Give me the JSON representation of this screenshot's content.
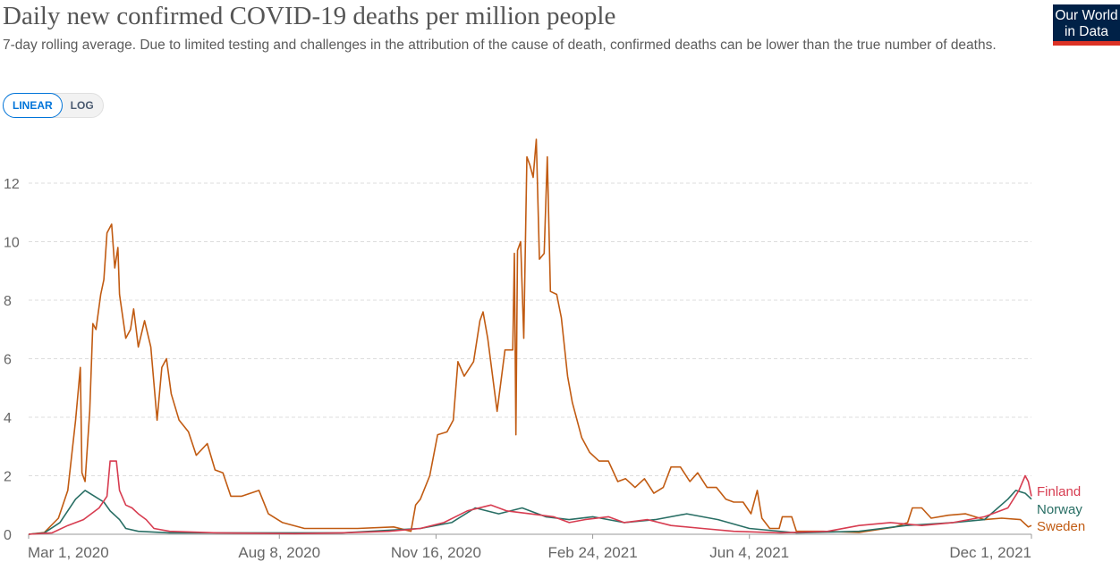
{
  "title": "Daily new confirmed COVID-19 deaths per million people",
  "subtitle": "7-day rolling average. Due to limited testing and challenges in the attribution of the cause of death, confirmed deaths can be lower than the true number of deaths.",
  "logo": {
    "line1": "Our World",
    "line2": "in Data"
  },
  "toggle": {
    "linear": "LINEAR",
    "log": "LOG"
  },
  "chart_data": {
    "type": "line",
    "title": "Daily new confirmed COVID-19 deaths per million people",
    "xlabel": "",
    "ylabel": "",
    "x_unit": "days since Mar 1, 2020",
    "xlim": [
      0,
      640
    ],
    "ylim": [
      0,
      12
    ],
    "y_ticks": [
      0,
      2,
      4,
      6,
      8,
      10,
      12
    ],
    "x_ticks": [
      {
        "day": 0,
        "label": "Mar 1, 2020"
      },
      {
        "day": 160,
        "label": "Aug 8, 2020"
      },
      {
        "day": 260,
        "label": "Nov 16, 2020"
      },
      {
        "day": 360,
        "label": "Feb 24, 2021"
      },
      {
        "day": 460,
        "label": "Jun 4, 2021"
      },
      {
        "day": 640,
        "label": "Dec 1, 2021"
      }
    ],
    "grid": true,
    "legend": "right-end labels",
    "series": [
      {
        "name": "Finland",
        "color": "#d73c50",
        "points": [
          [
            0,
            0
          ],
          [
            15,
            0.05
          ],
          [
            25,
            0.3
          ],
          [
            35,
            0.5
          ],
          [
            45,
            0.9
          ],
          [
            50,
            1.3
          ],
          [
            52,
            2.5
          ],
          [
            56,
            2.5
          ],
          [
            58,
            1.5
          ],
          [
            62,
            1.0
          ],
          [
            66,
            0.9
          ],
          [
            70,
            0.7
          ],
          [
            75,
            0.5
          ],
          [
            80,
            0.2
          ],
          [
            90,
            0.1
          ],
          [
            120,
            0.05
          ],
          [
            170,
            0.02
          ],
          [
            200,
            0.05
          ],
          [
            230,
            0.1
          ],
          [
            250,
            0.2
          ],
          [
            265,
            0.4
          ],
          [
            280,
            0.8
          ],
          [
            295,
            1.0
          ],
          [
            305,
            0.8
          ],
          [
            320,
            0.7
          ],
          [
            335,
            0.6
          ],
          [
            345,
            0.4
          ],
          [
            355,
            0.5
          ],
          [
            370,
            0.6
          ],
          [
            380,
            0.4
          ],
          [
            395,
            0.5
          ],
          [
            410,
            0.3
          ],
          [
            430,
            0.2
          ],
          [
            450,
            0.1
          ],
          [
            480,
            0.05
          ],
          [
            510,
            0.1
          ],
          [
            530,
            0.3
          ],
          [
            550,
            0.4
          ],
          [
            570,
            0.3
          ],
          [
            590,
            0.4
          ],
          [
            610,
            0.6
          ],
          [
            625,
            0.9
          ],
          [
            632,
            1.5
          ],
          [
            636,
            2.0
          ],
          [
            638,
            1.8
          ],
          [
            640,
            1.3
          ]
        ]
      },
      {
        "name": "Norway",
        "color": "#286e64",
        "points": [
          [
            0,
            0
          ],
          [
            10,
            0.05
          ],
          [
            20,
            0.4
          ],
          [
            30,
            1.2
          ],
          [
            36,
            1.5
          ],
          [
            42,
            1.3
          ],
          [
            48,
            1.1
          ],
          [
            52,
            0.8
          ],
          [
            58,
            0.5
          ],
          [
            62,
            0.2
          ],
          [
            70,
            0.1
          ],
          [
            90,
            0.05
          ],
          [
            200,
            0.05
          ],
          [
            250,
            0.2
          ],
          [
            270,
            0.4
          ],
          [
            285,
            0.9
          ],
          [
            300,
            0.7
          ],
          [
            315,
            0.9
          ],
          [
            330,
            0.6
          ],
          [
            345,
            0.5
          ],
          [
            360,
            0.6
          ],
          [
            380,
            0.4
          ],
          [
            400,
            0.5
          ],
          [
            420,
            0.7
          ],
          [
            440,
            0.5
          ],
          [
            460,
            0.2
          ],
          [
            490,
            0.05
          ],
          [
            530,
            0.1
          ],
          [
            560,
            0.3
          ],
          [
            590,
            0.4
          ],
          [
            610,
            0.5
          ],
          [
            625,
            1.2
          ],
          [
            630,
            1.5
          ],
          [
            636,
            1.4
          ],
          [
            640,
            1.2
          ]
        ]
      },
      {
        "name": "Sweden",
        "color": "#c15b12",
        "points": [
          [
            0,
            0
          ],
          [
            10,
            0.06
          ],
          [
            19,
            0.55
          ],
          [
            25,
            1.5
          ],
          [
            30,
            3.9
          ],
          [
            33,
            5.7
          ],
          [
            34,
            2.1
          ],
          [
            36,
            1.8
          ],
          [
            39,
            4.2
          ],
          [
            41,
            7.2
          ],
          [
            43,
            7.0
          ],
          [
            46,
            8.2
          ],
          [
            48,
            8.7
          ],
          [
            50,
            10.3
          ],
          [
            53,
            10.6
          ],
          [
            55,
            9.1
          ],
          [
            57,
            9.8
          ],
          [
            58,
            8.2
          ],
          [
            62,
            6.7
          ],
          [
            65,
            7.0
          ],
          [
            67,
            7.7
          ],
          [
            70,
            6.4
          ],
          [
            74,
            7.3
          ],
          [
            78,
            6.4
          ],
          [
            82,
            3.9
          ],
          [
            85,
            5.7
          ],
          [
            88,
            6.0
          ],
          [
            91,
            4.8
          ],
          [
            96,
            3.9
          ],
          [
            102,
            3.5
          ],
          [
            107,
            2.7
          ],
          [
            114,
            3.1
          ],
          [
            119,
            2.2
          ],
          [
            124,
            2.1
          ],
          [
            129,
            1.3
          ],
          [
            136,
            1.3
          ],
          [
            147,
            1.5
          ],
          [
            153,
            0.7
          ],
          [
            162,
            0.4
          ],
          [
            176,
            0.2
          ],
          [
            210,
            0.2
          ],
          [
            233,
            0.25
          ],
          [
            244,
            0.1
          ],
          [
            247,
            1.0
          ],
          [
            250,
            1.2
          ],
          [
            256,
            2.0
          ],
          [
            261,
            3.4
          ],
          [
            267,
            3.5
          ],
          [
            271,
            3.9
          ],
          [
            274,
            5.9
          ],
          [
            278,
            5.4
          ],
          [
            284,
            5.9
          ],
          [
            288,
            7.3
          ],
          [
            290,
            7.6
          ],
          [
            293,
            6.7
          ],
          [
            299,
            4.2
          ],
          [
            304,
            6.3
          ],
          [
            309,
            6.3
          ],
          [
            310,
            9.6
          ],
          [
            311,
            3.4
          ],
          [
            312,
            9.7
          ],
          [
            314,
            10.0
          ],
          [
            316,
            6.7
          ],
          [
            318,
            12.9
          ],
          [
            320,
            12.6
          ],
          [
            322,
            12.2
          ],
          [
            324,
            13.5
          ],
          [
            326,
            9.4
          ],
          [
            329,
            9.6
          ],
          [
            331,
            12.9
          ],
          [
            333,
            8.3
          ],
          [
            337,
            8.2
          ],
          [
            340,
            7.4
          ],
          [
            344,
            5.4
          ],
          [
            347,
            4.5
          ],
          [
            353,
            3.3
          ],
          [
            358,
            2.8
          ],
          [
            364,
            2.5
          ],
          [
            370,
            2.5
          ],
          [
            376,
            1.8
          ],
          [
            381,
            1.9
          ],
          [
            387,
            1.6
          ],
          [
            393,
            1.9
          ],
          [
            399,
            1.4
          ],
          [
            405,
            1.6
          ],
          [
            410,
            2.3
          ],
          [
            416,
            2.3
          ],
          [
            422,
            1.8
          ],
          [
            427,
            2.1
          ],
          [
            433,
            1.6
          ],
          [
            439,
            1.6
          ],
          [
            445,
            1.2
          ],
          [
            450,
            1.1
          ],
          [
            456,
            1.1
          ],
          [
            461,
            0.7
          ],
          [
            465,
            1.5
          ],
          [
            468,
            0.55
          ],
          [
            473,
            0.2
          ],
          [
            479,
            0.2
          ],
          [
            481,
            0.6
          ],
          [
            487,
            0.6
          ],
          [
            490,
            0.1
          ],
          [
            507,
            0.1
          ],
          [
            530,
            0.06
          ],
          [
            553,
            0.25
          ],
          [
            561,
            0.4
          ],
          [
            564,
            0.9
          ],
          [
            570,
            0.9
          ],
          [
            576,
            0.55
          ],
          [
            587,
            0.65
          ],
          [
            598,
            0.7
          ],
          [
            610,
            0.5
          ],
          [
            621,
            0.55
          ],
          [
            633,
            0.5
          ],
          [
            638,
            0.25
          ],
          [
            640,
            0.3
          ]
        ]
      }
    ]
  }
}
